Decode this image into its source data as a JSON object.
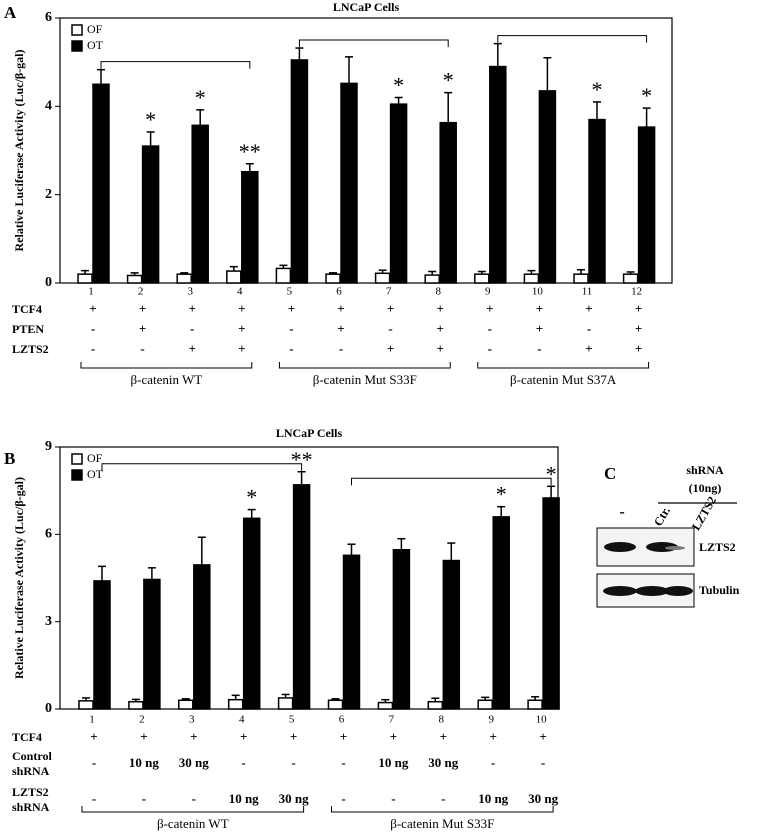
{
  "chart_data": [
    {
      "type": "bar",
      "panel": "A",
      "title": "LNCaP Cells",
      "y_label": "Relative Luciferase Activity (Luc/β-gal)",
      "categories": [
        "1",
        "2",
        "3",
        "4",
        "5",
        "6",
        "7",
        "8",
        "9",
        "10",
        "11",
        "12"
      ],
      "series": [
        {
          "name": "OF",
          "color": "#ffffff",
          "values": [
            0.2,
            0.17,
            0.2,
            0.27,
            0.33,
            0.2,
            0.22,
            0.18,
            0.2,
            0.2,
            0.2,
            0.2
          ],
          "errors": [
            0.08,
            0.06,
            0.03,
            0.1,
            0.07,
            0.03,
            0.07,
            0.08,
            0.06,
            0.08,
            0.1,
            0.05
          ]
        },
        {
          "name": "OT",
          "color": "#000000",
          "values": [
            4.5,
            3.1,
            3.57,
            2.52,
            5.05,
            4.52,
            4.05,
            3.63,
            4.9,
            4.35,
            3.7,
            3.53
          ],
          "errors": [
            0.33,
            0.32,
            0.35,
            0.18,
            0.27,
            0.6,
            0.15,
            0.68,
            0.52,
            0.75,
            0.4,
            0.43
          ]
        }
      ],
      "stars": [
        null,
        "*",
        "*",
        "**",
        null,
        null,
        "*",
        "*",
        null,
        null,
        "*",
        "*"
      ],
      "ylim": [
        0,
        6
      ],
      "yticks": [
        0,
        2,
        4,
        6
      ],
      "rows": [
        {
          "label": [
            "TCF4"
          ],
          "values": [
            "+",
            "+",
            "+",
            "+",
            "+",
            "+",
            "+",
            "+",
            "+",
            "+",
            "+",
            "+"
          ]
        },
        {
          "label": [
            "PTEN"
          ],
          "values": [
            "-",
            "+",
            "-",
            "+",
            "-",
            "+",
            "-",
            "+",
            "-",
            "+",
            "-",
            "+"
          ]
        },
        {
          "label": [
            "LZTS2"
          ],
          "values": [
            "-",
            "-",
            "+",
            "+",
            "-",
            "-",
            "+",
            "+",
            "-",
            "-",
            "+",
            "+"
          ]
        }
      ],
      "groups": [
        "β-catenin  WT",
        "β-catenin Mut S33F",
        "β-catenin Mut S37A"
      ]
    },
    {
      "type": "bar",
      "panel": "B",
      "title": "LNCaP Cells",
      "y_label": "Relative Luciferase Activity (Luc/β-gal)",
      "categories": [
        "1",
        "2",
        "3",
        "4",
        "5",
        "6",
        "7",
        "8",
        "9",
        "10"
      ],
      "series": [
        {
          "name": "OF",
          "color": "#ffffff",
          "values": [
            0.28,
            0.25,
            0.3,
            0.32,
            0.38,
            0.3,
            0.22,
            0.25,
            0.3,
            0.3
          ],
          "errors": [
            0.1,
            0.08,
            0.05,
            0.15,
            0.12,
            0.05,
            0.1,
            0.12,
            0.1,
            0.12
          ]
        },
        {
          "name": "OT",
          "color": "#000000",
          "values": [
            4.4,
            4.45,
            4.95,
            6.55,
            7.7,
            5.28,
            5.47,
            5.1,
            6.6,
            7.25
          ],
          "errors": [
            0.5,
            0.4,
            0.95,
            0.3,
            0.45,
            0.38,
            0.38,
            0.6,
            0.35,
            0.4
          ]
        }
      ],
      "stars": [
        null,
        null,
        null,
        "*",
        "**",
        null,
        null,
        null,
        "*",
        "*"
      ],
      "ylim": [
        0,
        9
      ],
      "yticks": [
        0,
        3,
        6,
        9
      ],
      "rows": [
        {
          "label": [
            "TCF4"
          ],
          "values": [
            "+",
            "+",
            "+",
            "+",
            "+",
            "+",
            "+",
            "+",
            "+",
            "+"
          ]
        },
        {
          "label": [
            "Control",
            "shRNA"
          ],
          "values": [
            "-",
            "10 ng",
            "30 ng",
            "-",
            "-",
            "-",
            "10 ng",
            "30 ng",
            "-",
            "-"
          ]
        },
        {
          "label": [
            "LZTS2",
            "shRNA"
          ],
          "values": [
            "-",
            "-",
            "-",
            "10 ng",
            "30 ng",
            "-",
            "-",
            "-",
            "10 ng",
            "30 ng"
          ]
        }
      ],
      "groups": [
        "β-catenin  WT",
        "β-catenin Mut S33F"
      ]
    }
  ],
  "panel_c": {
    "letter": "C",
    "header": [
      "shRNA",
      "(10ng)"
    ],
    "lanes": [
      "-",
      "Ctr.",
      "LZTS2"
    ],
    "blots": [
      "LZTS2",
      "Tubulin"
    ]
  }
}
